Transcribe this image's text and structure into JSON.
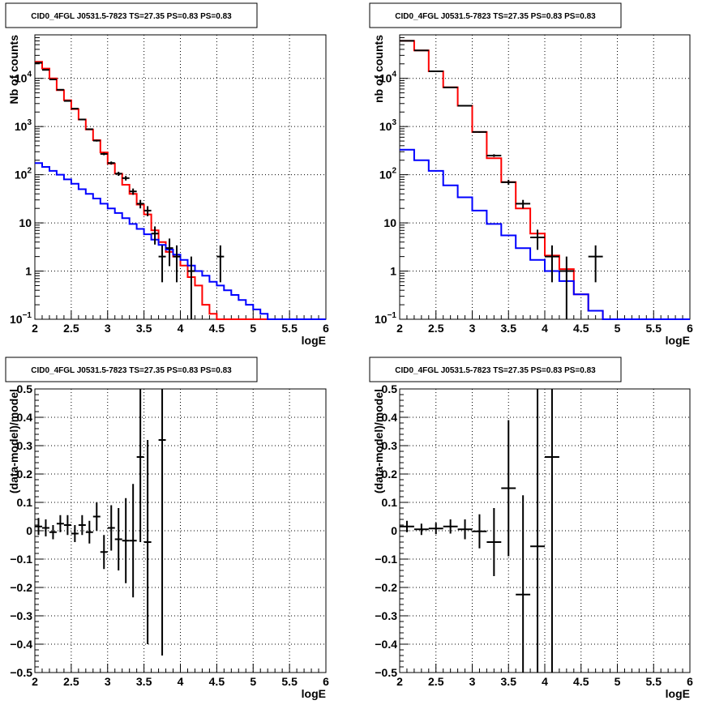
{
  "colors": {
    "model_total": "#ff0000",
    "model_source": "#0000ff",
    "data": "#000000",
    "grid": "#000000"
  },
  "chart_data": [
    {
      "type": "line",
      "title": "CID0_4FGL J0531.5-7823 TS=27.35 PS=0.83 PS=0.83",
      "xlabel": "logE",
      "ylabel": "Nb of counts",
      "xlim": [
        2,
        6
      ],
      "ylim": [
        0.1,
        80000
      ],
      "yscale": "log",
      "grid": true,
      "x_ticks": [
        "2",
        "2.5",
        "3",
        "3.5",
        "4",
        "4.5",
        "5",
        "5.5",
        "6"
      ],
      "y_ticks": [
        {
          "v": 0.1,
          "label": "10",
          "sup": "−1"
        },
        {
          "v": 1,
          "label": "1",
          "sup": ""
        },
        {
          "v": 10,
          "label": "10",
          "sup": ""
        },
        {
          "v": 100,
          "label": "10",
          "sup": "2"
        },
        {
          "v": 1000,
          "label": "10",
          "sup": "3"
        },
        {
          "v": 10000,
          "label": "10",
          "sup": "4"
        }
      ],
      "bin_edges": [
        2.0,
        2.1,
        2.2,
        2.3,
        2.4,
        2.5,
        2.6,
        2.7,
        2.8,
        2.9,
        3.0,
        3.1,
        3.2,
        3.3,
        3.4,
        3.5,
        3.6,
        3.7,
        3.8,
        3.9,
        4.0,
        4.1,
        4.2,
        4.3,
        4.4,
        4.5,
        4.6,
        4.7,
        4.8,
        4.9,
        5.0,
        5.1,
        5.2,
        5.3,
        5.4,
        5.5,
        5.6,
        5.7,
        5.8,
        5.9,
        6.0
      ],
      "series": [
        {
          "role": "model_total",
          "values": [
            22000,
            16000,
            10000,
            5700,
            3500,
            2300,
            1400,
            870,
            520,
            290,
            170,
            105,
            62,
            40,
            24,
            15,
            7,
            4,
            2.5,
            2.0,
            1.3,
            0.75,
            0.5,
            0.2,
            0.13,
            0.1,
            0.1,
            0.1,
            0.1,
            0.1,
            0.1,
            0.1,
            0.1,
            0.1,
            0.1,
            0.1,
            0.1,
            0.1,
            0.1,
            0.1
          ]
        },
        {
          "role": "model_source",
          "values": [
            175,
            145,
            120,
            100,
            80,
            65,
            50,
            40,
            32,
            25,
            20,
            16,
            12.5,
            9.5,
            7.5,
            5.8,
            4.5,
            3.5,
            2.8,
            2.2,
            1.7,
            1.3,
            1.0,
            0.8,
            0.6,
            0.5,
            0.4,
            0.32,
            0.25,
            0.2,
            0.16,
            0.13,
            0.1,
            0.1,
            0.1,
            0.1,
            0.1,
            0.1,
            0.1,
            0.1
          ]
        }
      ],
      "points": [
        {
          "x": 2.05,
          "y": 21000
        },
        {
          "x": 2.15,
          "y": 15000
        },
        {
          "x": 2.25,
          "y": 9500
        },
        {
          "x": 2.35,
          "y": 5800
        },
        {
          "x": 2.45,
          "y": 3400
        },
        {
          "x": 2.55,
          "y": 2350
        },
        {
          "x": 2.65,
          "y": 1400
        },
        {
          "x": 2.75,
          "y": 880
        },
        {
          "x": 2.85,
          "y": 510
        },
        {
          "x": 2.95,
          "y": 270
        },
        {
          "x": 3.05,
          "y": 175
        },
        {
          "x": 3.15,
          "y": 105
        },
        {
          "x": 3.25,
          "y": 85
        },
        {
          "x": 3.35,
          "y": 45
        },
        {
          "x": 3.45,
          "y": 25
        },
        {
          "x": 3.55,
          "y": 18
        },
        {
          "x": 3.65,
          "y": 6
        },
        {
          "x": 3.75,
          "y": 2
        },
        {
          "x": 3.85,
          "y": 3
        },
        {
          "x": 3.95,
          "y": 2
        },
        {
          "x": 4.15,
          "y": 1
        },
        {
          "x": 4.55,
          "y": 2
        }
      ]
    },
    {
      "type": "line",
      "title": "CID0_4FGL J0531.5-7823 TS=27.35 PS=0.83 PS=0.83",
      "xlabel": "logE",
      "ylabel": "nb of counts",
      "xlim": [
        2,
        6
      ],
      "ylim": [
        0.1,
        80000
      ],
      "yscale": "log",
      "grid": true,
      "x_ticks": [
        "2",
        "2.5",
        "3",
        "3.5",
        "4",
        "4.5",
        "5",
        "5.5",
        "6"
      ],
      "y_ticks": [
        {
          "v": 0.1,
          "label": "10",
          "sup": "−1"
        },
        {
          "v": 1,
          "label": "1",
          "sup": ""
        },
        {
          "v": 10,
          "label": "10",
          "sup": ""
        },
        {
          "v": 100,
          "label": "10",
          "sup": "2"
        },
        {
          "v": 1000,
          "label": "10",
          "sup": "3"
        },
        {
          "v": 10000,
          "label": "10",
          "sup": "4"
        }
      ],
      "bin_edges": [
        2.0,
        2.2,
        2.4,
        2.6,
        2.8,
        3.0,
        3.2,
        3.4,
        3.6,
        3.8,
        4.0,
        4.2,
        4.4,
        4.6,
        4.8,
        5.0,
        5.2,
        5.4,
        5.6,
        5.8,
        6.0
      ],
      "series": [
        {
          "role": "model_total",
          "values": [
            60000,
            38000,
            14000,
            6500,
            2700,
            770,
            220,
            70,
            20,
            6,
            2.1,
            1.1,
            0.33,
            0.15,
            0.1,
            0.1,
            0.1,
            0.1,
            0.1,
            0.1
          ]
        },
        {
          "role": "model_source",
          "values": [
            330,
            200,
            120,
            60,
            34,
            18,
            9.5,
            5.5,
            3.0,
            1.7,
            1.0,
            0.62,
            0.33,
            0.15,
            0.1,
            0.1,
            0.1,
            0.1,
            0.1,
            0.1
          ]
        }
      ],
      "points": [
        {
          "x": 2.1,
          "y": 60000
        },
        {
          "x": 2.3,
          "y": 38000
        },
        {
          "x": 2.5,
          "y": 14000
        },
        {
          "x": 2.7,
          "y": 6500
        },
        {
          "x": 2.9,
          "y": 2700
        },
        {
          "x": 3.1,
          "y": 770
        },
        {
          "x": 3.3,
          "y": 250
        },
        {
          "x": 3.5,
          "y": 70
        },
        {
          "x": 3.7,
          "y": 25
        },
        {
          "x": 3.9,
          "y": 5
        },
        {
          "x": 4.1,
          "y": 2
        },
        {
          "x": 4.3,
          "y": 1
        },
        {
          "x": 4.7,
          "y": 2
        }
      ]
    },
    {
      "type": "scatter",
      "title": "CID0_4FGL J0531.5-7823 TS=27.35 PS=0.83 PS=0.83",
      "xlabel": "logE",
      "ylabel": "(data-model)/model",
      "xlim": [
        2,
        6
      ],
      "ylim": [
        -0.5,
        0.5
      ],
      "grid": true,
      "x_ticks": [
        "2",
        "2.5",
        "3",
        "3.5",
        "4",
        "4.5",
        "5",
        "5.5",
        "6"
      ],
      "y_ticks": [
        "−0.5",
        "−0.4",
        "−0.3",
        "−0.2",
        "−0.1",
        "0",
        "0.1",
        "0.2",
        "0.3",
        "0.4",
        "0.5"
      ],
      "bin_half_width": 0.05,
      "points": [
        {
          "x": 2.05,
          "y": 0.015,
          "err": 0.03
        },
        {
          "x": 2.15,
          "y": 0.01,
          "err": 0.03
        },
        {
          "x": 2.25,
          "y": -0.005,
          "err": 0.025
        },
        {
          "x": 2.35,
          "y": 0.025,
          "err": 0.03
        },
        {
          "x": 2.45,
          "y": 0.02,
          "err": 0.035
        },
        {
          "x": 2.55,
          "y": -0.01,
          "err": 0.03
        },
        {
          "x": 2.65,
          "y": 0.02,
          "err": 0.035
        },
        {
          "x": 2.75,
          "y": -0.005,
          "err": 0.04
        },
        {
          "x": 2.85,
          "y": 0.05,
          "err": 0.05
        },
        {
          "x": 2.95,
          "y": -0.075,
          "err": 0.06
        },
        {
          "x": 3.05,
          "y": 0.01,
          "err": 0.08
        },
        {
          "x": 3.15,
          "y": -0.03,
          "err": 0.11
        },
        {
          "x": 3.25,
          "y": -0.035,
          "err": 0.15
        },
        {
          "x": 3.35,
          "y": -0.035,
          "err": 0.2
        },
        {
          "x": 3.45,
          "y": 0.26,
          "err": 0.3
        },
        {
          "x": 3.55,
          "y": -0.04,
          "err": 0.36
        },
        {
          "x": 3.75,
          "y": 0.32,
          "err": 0.76
        }
      ]
    },
    {
      "type": "scatter",
      "title": "CID0_4FGL J0531.5-7823 TS=27.35 PS=0.83 PS=0.83",
      "xlabel": "logE",
      "ylabel": "(data-model)/model",
      "xlim": [
        2,
        6
      ],
      "ylim": [
        -0.5,
        0.5
      ],
      "grid": true,
      "x_ticks": [
        "2",
        "2.5",
        "3",
        "3.5",
        "4",
        "4.5",
        "5",
        "5.5",
        "6"
      ],
      "y_ticks": [
        "−0.5",
        "−0.4",
        "−0.3",
        "−0.2",
        "−0.1",
        "0",
        "0.1",
        "0.2",
        "0.3",
        "0.4",
        "0.5"
      ],
      "bin_half_width": 0.1,
      "points": [
        {
          "x": 2.1,
          "y": 0.015,
          "err": 0.02
        },
        {
          "x": 2.3,
          "y": 0.005,
          "err": 0.02
        },
        {
          "x": 2.5,
          "y": 0.008,
          "err": 0.02
        },
        {
          "x": 2.7,
          "y": 0.015,
          "err": 0.025
        },
        {
          "x": 2.9,
          "y": 0.005,
          "err": 0.035
        },
        {
          "x": 3.1,
          "y": -0.002,
          "err": 0.06
        },
        {
          "x": 3.3,
          "y": -0.04,
          "err": 0.12
        },
        {
          "x": 3.5,
          "y": 0.15,
          "err": 0.24
        },
        {
          "x": 3.7,
          "y": -0.225,
          "err": 0.35
        },
        {
          "x": 3.9,
          "y": -0.055,
          "err": 0.6
        },
        {
          "x": 4.1,
          "y": 0.26,
          "err": 0.8
        }
      ]
    }
  ]
}
